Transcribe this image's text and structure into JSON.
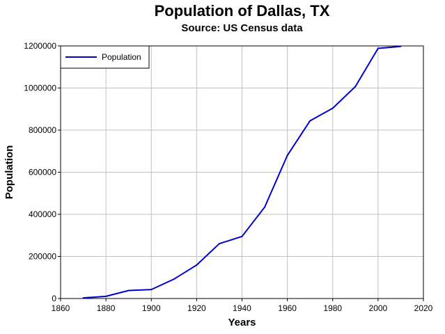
{
  "chart_data": {
    "type": "line",
    "title": "Population of Dallas, TX",
    "subtitle": "Source: US Census data",
    "xlabel": "Years",
    "ylabel": "Population",
    "xlim": [
      1860,
      2020
    ],
    "ylim": [
      0,
      1200000
    ],
    "x_ticks": [
      "1860",
      "1880",
      "1900",
      "1920",
      "1940",
      "1960",
      "1980",
      "2000",
      "2020"
    ],
    "y_ticks": [
      "0",
      "200000",
      "400000",
      "600000",
      "800000",
      "1000000",
      "1200000"
    ],
    "grid": true,
    "legend_position": "top-left",
    "series": [
      {
        "name": "Population",
        "color": "#0000cc",
        "x": [
          1870,
          1880,
          1890,
          1900,
          1910,
          1920,
          1930,
          1940,
          1950,
          1960,
          1970,
          1980,
          1990,
          2000,
          2010
        ],
        "values": [
          3000,
          10358,
          38067,
          42638,
          92104,
          158976,
          260475,
          294734,
          434462,
          679684,
          844401,
          904078,
          1006877,
          1188580,
          1197816
        ]
      }
    ]
  }
}
